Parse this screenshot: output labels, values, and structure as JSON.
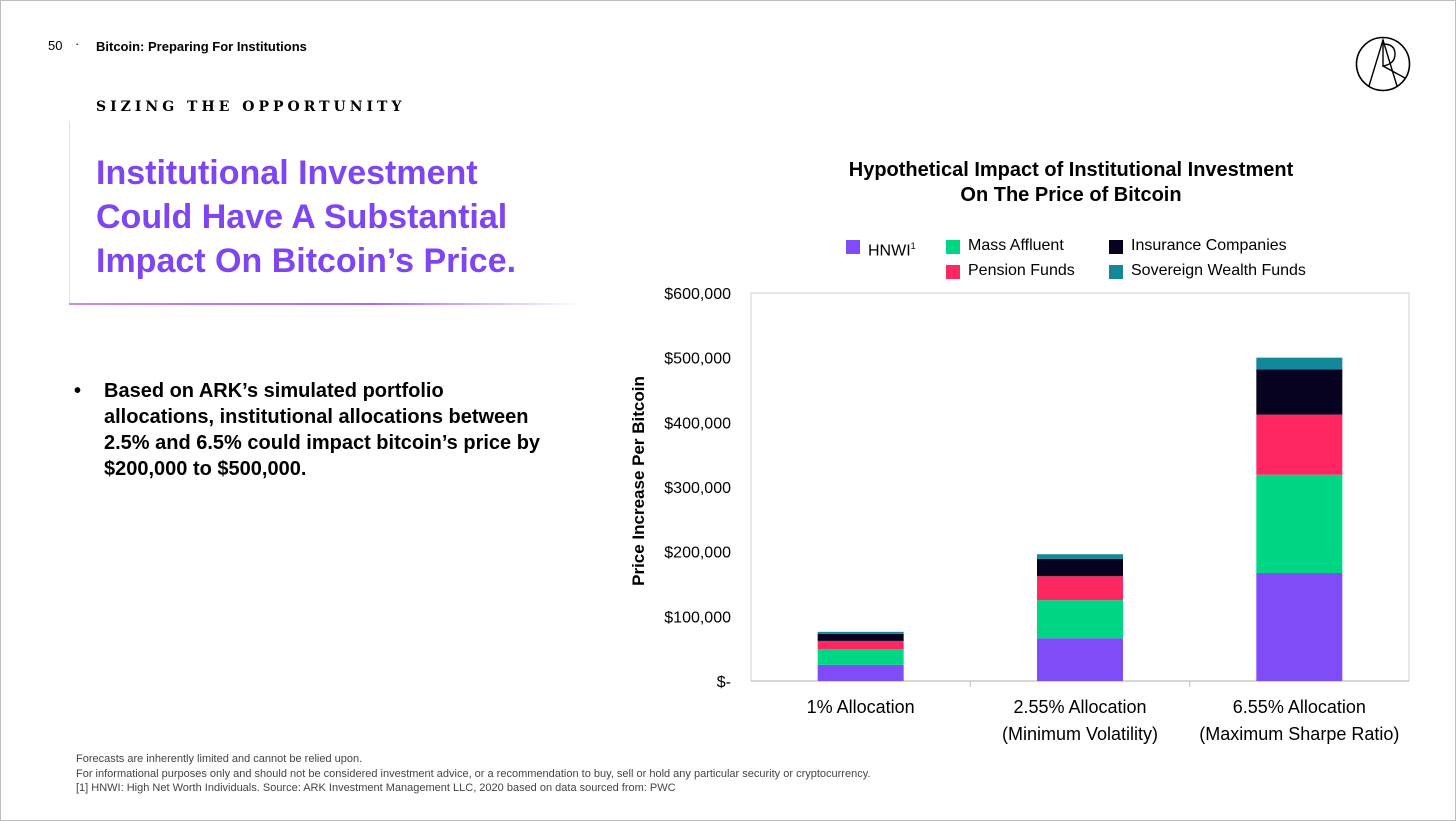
{
  "header": {
    "page_number": "50",
    "separator": "·",
    "deck_title": "Bitcoin: Preparing For Institutions"
  },
  "kicker": "SIZING THE OPPORTUNITY",
  "headline": "Institutional Investment Could Have A Substantial Impact On Bitcoin’s Price.",
  "bullet": {
    "mark": "•",
    "text": "Based on ARK’s simulated portfolio allocations, institutional allocations between 2.5% and 6.5% could impact bitcoin’s price by $200,000 to $500,000."
  },
  "legend": {
    "hnwi": "HNWI",
    "hnwi_sup": "1",
    "mass_affluent": "Mass Affluent",
    "insurance": "Insurance Companies",
    "pension": "Pension Funds",
    "sovereign": "Sovereign Wealth Funds"
  },
  "chart_data": {
    "type": "bar",
    "stacked": true,
    "title_line1": "Hypothetical Impact of Institutional Investment",
    "title_line2": "On The Price of Bitcoin",
    "ylabel": "Price Increase Per Bitcoin",
    "xlabel": "",
    "ylim": [
      0,
      600000
    ],
    "yticks": [
      0,
      100000,
      200000,
      300000,
      400000,
      500000,
      600000
    ],
    "ytick_labels": [
      "$-",
      "$100,000",
      "$200,000",
      "$300,000",
      "$400,000",
      "$500,000",
      "$600,000"
    ],
    "categories": [
      [
        "1% Allocation"
      ],
      [
        "2.55% Allocation",
        "(Minimum Volatility)"
      ],
      [
        "6.55% Allocation",
        "(Maximum Sharpe Ratio)"
      ]
    ],
    "series": [
      {
        "name": "HNWI",
        "color": "#7f4cf7",
        "values": [
          25000,
          66000,
          167000
        ]
      },
      {
        "name": "Mass Affluent",
        "color": "#00d785",
        "values": [
          24000,
          59000,
          152000
        ]
      },
      {
        "name": "Pension Funds",
        "color": "#ff2761",
        "values": [
          13000,
          37000,
          93000
        ]
      },
      {
        "name": "Insurance Companies",
        "color": "#07021f",
        "values": [
          11000,
          27000,
          70000
        ]
      },
      {
        "name": "Sovereign Wealth Funds",
        "color": "#13889a",
        "values": [
          3000,
          7000,
          18000
        ]
      }
    ],
    "grid": false,
    "legend_position": "top"
  },
  "footnotes": [
    "Forecasts are inherently limited and cannot be relied upon.",
    "For informational purposes only and should not be considered investment advice, or a recommendation to buy, sell or hold any particular security or cryptocurrency.",
    "[1] HNWI: High Net Worth Individuals. Source: ARK Investment Management LLC, 2020 based on data sourced from: PWC"
  ]
}
